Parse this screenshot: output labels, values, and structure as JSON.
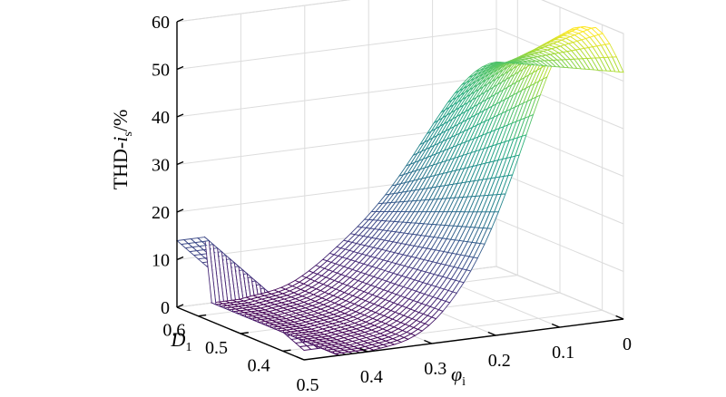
{
  "chart_data": {
    "type": "surface",
    "title": "",
    "zlabel": {
      "main": "THD-",
      "var": "i",
      "sub": "s",
      "unit": "/%"
    },
    "xlabel": {
      "var": "φ",
      "sub": "i"
    },
    "ylabel": {
      "var": "D",
      "sub": "1"
    },
    "x_ticks": [
      "0.5",
      "0.4",
      "0.3",
      "0.2",
      "0.1",
      "0"
    ],
    "y_ticks": [
      "0.6",
      "0.5",
      "0.4"
    ],
    "z_ticks": [
      "0",
      "10",
      "20",
      "30",
      "40",
      "50",
      "60"
    ],
    "xlim": [
      0,
      0.5
    ],
    "ylim": [
      0.35,
      0.65
    ],
    "zlim": [
      0,
      60
    ],
    "grid": true,
    "colormap": "viridis",
    "sample_points": [
      {
        "phi": 0.5,
        "D1": 0.65,
        "thd": 14
      },
      {
        "phi": 0.5,
        "D1": 0.35,
        "thd": 2
      },
      {
        "phi": 0.35,
        "D1": 0.35,
        "thd": 0
      },
      {
        "phi": 0.05,
        "D1": 0.35,
        "thd": 62
      },
      {
        "phi": 0.0,
        "D1": 0.35,
        "thd": 50
      },
      {
        "phi": 0.0,
        "D1": 0.65,
        "thd": 44
      }
    ]
  }
}
